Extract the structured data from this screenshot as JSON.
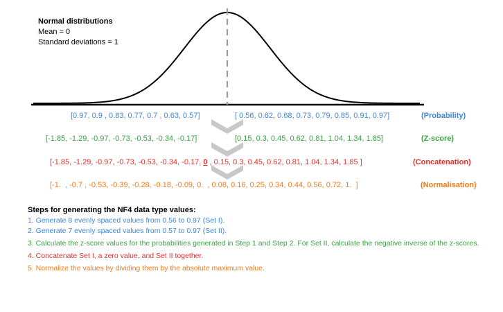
{
  "legend": {
    "title": "Normal distributions",
    "mean": "Mean = 0",
    "std": "Standard deviations = 1"
  },
  "colors": {
    "blue": "#3f86d8",
    "green": "#3aa141",
    "red": "#e0312d",
    "orange": "#f07a1a"
  },
  "rows": [
    {
      "name": "probability",
      "segments": [
        {
          "text": "[0.97, 0.9 , 0.83, 0.77, 0.7 , 0.63, 0.57]"
        },
        {
          "text": "[ 0.56, 0.62, 0.68, 0.73, 0.79, 0.85, 0.91, 0.97]"
        }
      ],
      "label": "(Probability)",
      "color": "#3f86d8"
    },
    {
      "name": "zscore",
      "segments": [
        {
          "text": "[-1.85, -1.29, -0.97, -0.73, -0.53, -0.34, -0.17]"
        },
        {
          "text": "[0.15, 0.3, 0.45, 0.62, 0.81, 1.04, 1.34, 1.85]"
        }
      ],
      "label": "(Z-score)",
      "color": "#3aa141"
    },
    {
      "name": "concatenation",
      "before": "[-1.85, -1.29, -0.97, -0.73, -0.53, -0.34, -0.17, ",
      "zero": "0",
      "after": " , 0.15, 0.3, 0.45, 0.62, 0.81, 1.04, 1.34, 1.85 ]",
      "label": "(Concatenation)",
      "color": "#e0312d"
    },
    {
      "name": "normalisation",
      "text": "[-1.  , -0.7 , -0.53, -0.39, -0.28, -0.18, -0.09, 0.  , 0.08, 0.16, 0.25, 0.34, 0.44, 0.56, 0.72, 1.  ]",
      "label": "(Normalisation)",
      "color": "#f07a1a"
    }
  ],
  "steps": {
    "heading": "Steps for generating the NF4 data type values:",
    "items": [
      {
        "text": "1. Generate 8 evenly spaced values from 0.56 to 0.97 (Set I).",
        "color": "#3f86d8"
      },
      {
        "text": "2. Generate 7 evenly spaced values from 0.57 to 0.97 (Set II).",
        "color": "#3f86d8"
      },
      {
        "text": "3. Calculate the z-score values for the probabilities generated in Step 1 and Step 2. For Set II, calculate the negative inverse of the z-scores.",
        "color": "#3aa141"
      },
      {
        "text": "4. Concatenate Set I, a zero value, and Set II together.",
        "color": "#e0312d"
      },
      {
        "text": "5. Normalize the values by dividing them by the absolute maximum value.",
        "color": "#f07a1a"
      }
    ]
  }
}
